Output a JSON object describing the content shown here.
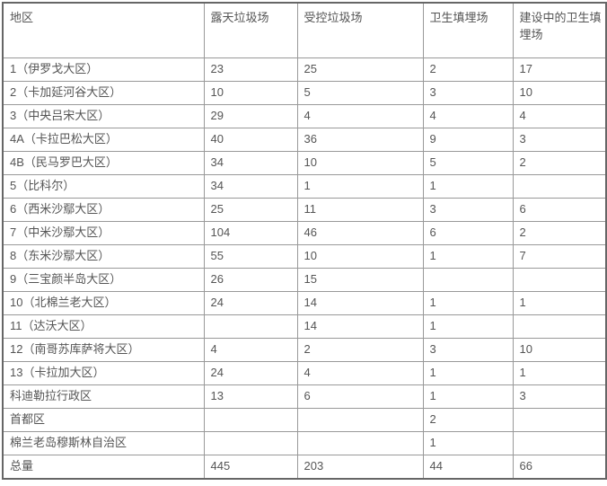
{
  "table": {
    "columns": [
      "地区",
      "露天垃圾场",
      "受控垃圾场",
      "卫生填埋场",
      "建设中的卫生填埋场"
    ],
    "rows": [
      {
        "region": "1（伊罗戈大区）",
        "values": [
          "23",
          "25",
          "2",
          "17"
        ]
      },
      {
        "region": "2（卡加延河谷大区）",
        "values": [
          "10",
          "5",
          "3",
          "10"
        ]
      },
      {
        "region": "3（中央吕宋大区）",
        "values": [
          "29",
          "4",
          "4",
          "4"
        ]
      },
      {
        "region": "4A（卡拉巴松大区）",
        "values": [
          "40",
          "36",
          "9",
          "3"
        ]
      },
      {
        "region": "4B（民马罗巴大区）",
        "values": [
          "34",
          "10",
          "5",
          "2"
        ]
      },
      {
        "region": "5（比科尔）",
        "values": [
          "34",
          "1",
          "1",
          ""
        ]
      },
      {
        "region": "6（西米沙鄢大区）",
        "values": [
          "25",
          "11",
          "3",
          "6"
        ]
      },
      {
        "region": "7（中米沙鄢大区）",
        "values": [
          "104",
          "46",
          "6",
          "2"
        ]
      },
      {
        "region": "8（东米沙鄢大区）",
        "values": [
          "55",
          "10",
          "1",
          "7"
        ]
      },
      {
        "region": "9（三宝颜半岛大区）",
        "values": [
          "26",
          "15",
          "",
          ""
        ]
      },
      {
        "region": "10（北棉兰老大区）",
        "values": [
          "24",
          "14",
          "1",
          "1"
        ]
      },
      {
        "region": "11（达沃大区）",
        "values": [
          "",
          "14",
          "1",
          ""
        ]
      },
      {
        "region": "12（南哥苏库萨将大区）",
        "values": [
          "4",
          "2",
          "3",
          "10"
        ]
      },
      {
        "region": "13（卡拉加大区）",
        "values": [
          "24",
          "4",
          "1",
          "1"
        ]
      },
      {
        "region": "科迪勒拉行政区",
        "values": [
          "13",
          "6",
          "1",
          "3"
        ]
      },
      {
        "region": "首都区",
        "values": [
          "",
          "",
          "2",
          ""
        ]
      },
      {
        "region": "棉兰老岛穆斯林自治区",
        "values": [
          "",
          "",
          "1",
          ""
        ]
      },
      {
        "region": "总量",
        "values": [
          "445",
          "203",
          "44",
          "66"
        ]
      }
    ]
  },
  "colors": {
    "text": "#555555",
    "border_inner": "#999999",
    "border_outer": "#666666",
    "background": "#ffffff"
  }
}
